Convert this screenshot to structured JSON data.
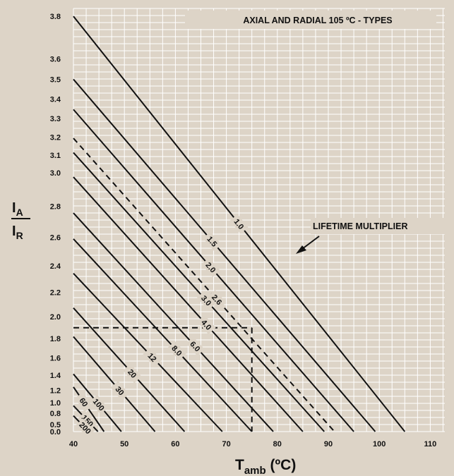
{
  "chart_data": {
    "type": "line",
    "title": "AXIAL AND RADIAL 105 ºC - TYPES",
    "annotation": "LIFETIME MULTIPLIER",
    "xlabel": {
      "main": "T",
      "sub": "amb",
      "suffix": " (ºC)"
    },
    "ylabel": {
      "numerator": "I",
      "numerator_sub": "A",
      "denominator": "I",
      "denominator_sub": "R"
    },
    "xlim": [
      40,
      113
    ],
    "x_ticks": [
      "40",
      "50",
      "60",
      "70",
      "80",
      "90",
      "100",
      "110"
    ],
    "y_ticks": [
      "0.0",
      "0.5",
      "0.8",
      "1.0",
      "1.2",
      "1.4",
      "1.6",
      "1.8",
      "2.0",
      "2.2",
      "2.4",
      "2.6",
      "2.8",
      "3.0",
      "3.1",
      "3.2",
      "3.3",
      "3.4",
      "3.5",
      "3.6",
      "3.8"
    ],
    "grid": true,
    "series": [
      {
        "name": "1.0",
        "x": [
          40,
          105
        ],
        "y_squared": [
          14.44,
          0
        ],
        "style": "solid"
      },
      {
        "name": "1.5",
        "x": [
          40,
          99.2
        ],
        "y_squared": [
          12.25,
          0
        ],
        "style": "solid"
      },
      {
        "name": "2.0",
        "x": [
          40,
          95
        ],
        "y_squared": [
          11.2,
          0
        ],
        "style": "solid"
      },
      {
        "name": "2.6",
        "x": [
          40,
          91.2
        ],
        "y_squared": [
          10.2,
          0
        ],
        "style": "dashed"
      },
      {
        "name": "3.0",
        "x": [
          40,
          89.2
        ],
        "y_squared": [
          9.7,
          0
        ],
        "style": "solid"
      },
      {
        "name": "4.0",
        "x": [
          40,
          85
        ],
        "y_squared": [
          8.85,
          0
        ],
        "style": "solid"
      },
      {
        "name": "6.0",
        "x": [
          40,
          79.2
        ],
        "y_squared": [
          7.6,
          0
        ],
        "style": "solid"
      },
      {
        "name": "8.0",
        "x": [
          40,
          75
        ],
        "y_squared": [
          6.7,
          0
        ],
        "style": "solid"
      },
      {
        "name": "12",
        "x": [
          40,
          69.2
        ],
        "y_squared": [
          5.5,
          0
        ],
        "style": "solid"
      },
      {
        "name": "20",
        "x": [
          40,
          61.8
        ],
        "y_squared": [
          4.3,
          0
        ],
        "style": "solid"
      },
      {
        "name": "30",
        "x": [
          40,
          56
        ],
        "y_squared": [
          3.3,
          0
        ],
        "style": "solid"
      },
      {
        "name": "60",
        "x": [
          40,
          46
        ],
        "y_squared": [
          1.55,
          0
        ],
        "style": "solid"
      },
      {
        "name": "100",
        "x": [
          40,
          49.4
        ],
        "y_squared": [
          2.0,
          0
        ],
        "style": "solid"
      },
      {
        "name": "150",
        "x": [
          40,
          44.8
        ],
        "y_squared": [
          0.9,
          0
        ],
        "style": "solid"
      },
      {
        "name": "200",
        "x": [
          40,
          43
        ],
        "y_squared": [
          0.55,
          0
        ],
        "style": "solid"
      }
    ],
    "reference_lines": {
      "x": 75,
      "y": 1.9,
      "style": "dashed"
    }
  }
}
